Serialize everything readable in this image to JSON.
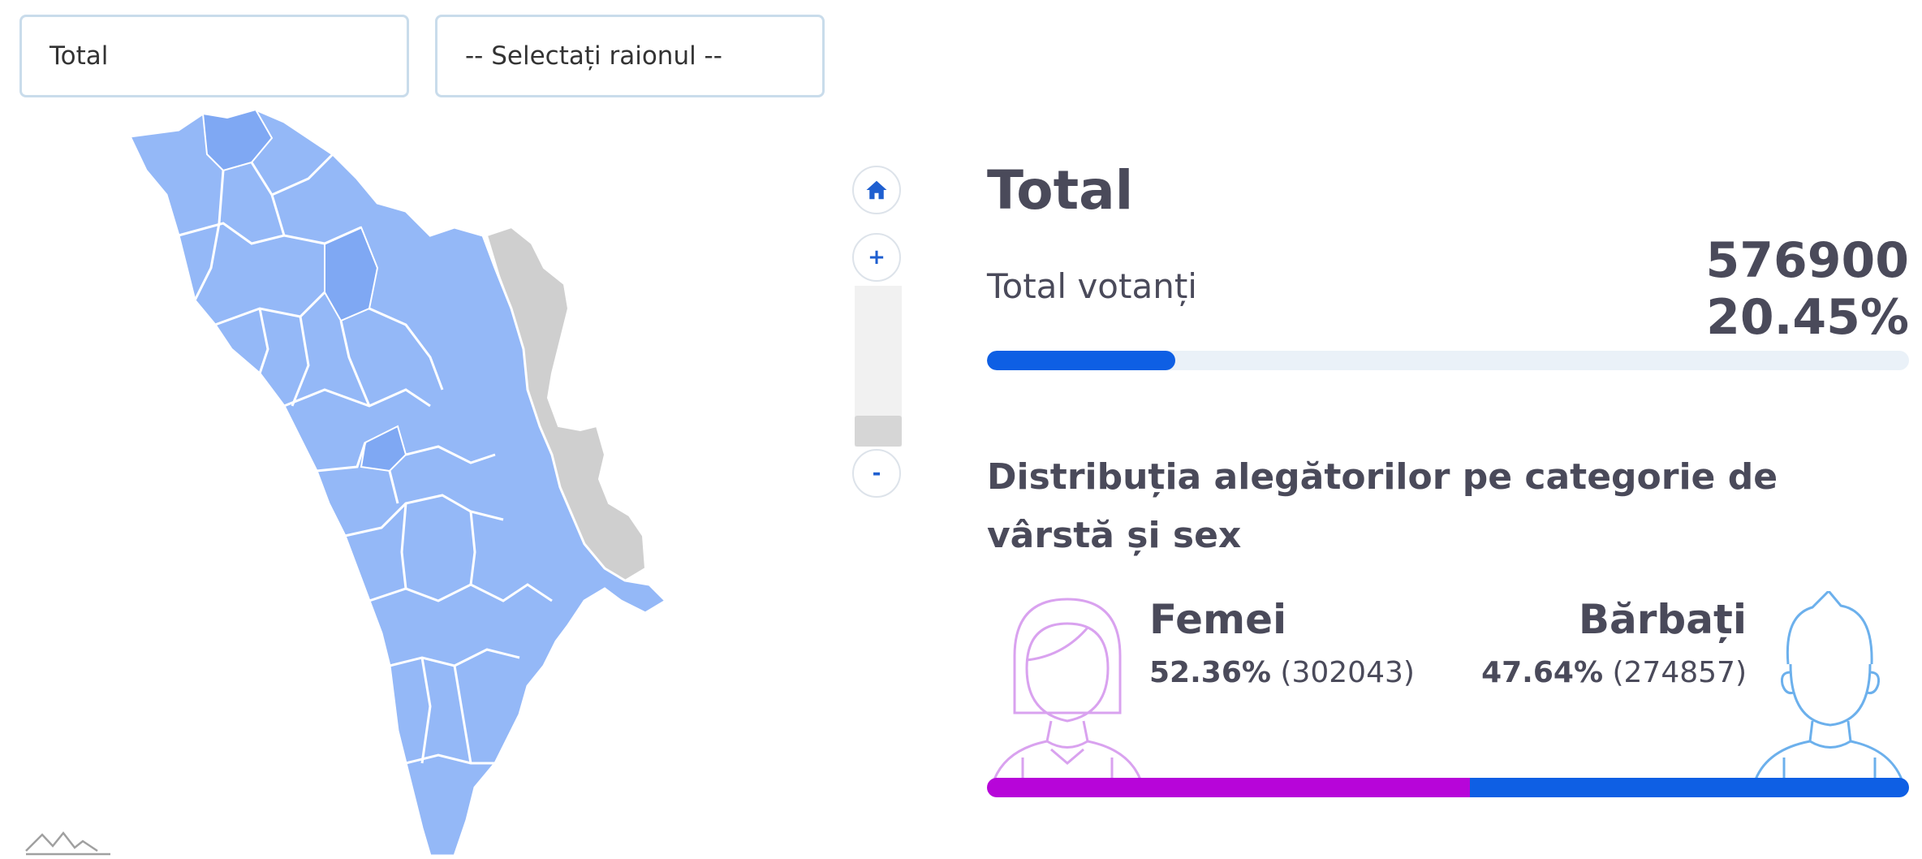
{
  "filters": {
    "category_select": {
      "value": "Total"
    },
    "district_select": {
      "value": "-- Selectați raionul --"
    }
  },
  "map": {
    "region_color": "#94b8f7",
    "highlight_color": "#7fa8f3",
    "transnistria_color": "#cfcfcf",
    "border_color": "#ffffff"
  },
  "zoom": {
    "home_icon": "home-icon",
    "zoom_in_label": "+",
    "zoom_out_label": "-"
  },
  "summary": {
    "title": "Total",
    "voters_label": "Total votanți",
    "voters_count": "576900",
    "voters_percent": "20.45%",
    "turnout_fraction": 0.2045,
    "accent_color": "#0e5fe4"
  },
  "distribution": {
    "title": "Distribuția alegătorilor pe categorie de vârstă și sex",
    "female": {
      "label": "Femei",
      "percent": "52.36%",
      "count": "(302043)",
      "fraction": 0.5236,
      "color": "#b705d9",
      "icon": "female-avatar-icon"
    },
    "male": {
      "label": "Bărbați",
      "percent": "47.64%",
      "count": "(274857)",
      "fraction": 0.4764,
      "color": "#0e5fe4",
      "icon": "male-avatar-icon"
    }
  }
}
